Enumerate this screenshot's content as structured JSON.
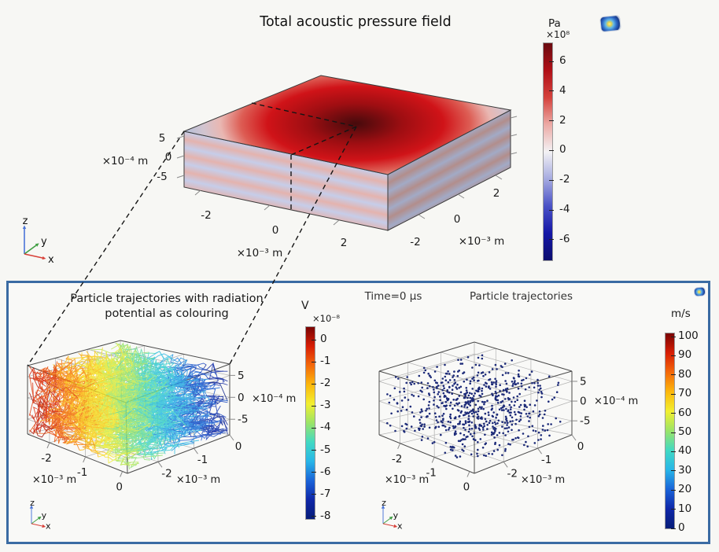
{
  "triad": {
    "z": "z",
    "y": "y",
    "x": "x"
  },
  "colors": {
    "panel_border": "#3a6ba3",
    "background": "#f7f7f4",
    "scatter_dot": "#1c2a78",
    "wireframe": "#4a4a4a",
    "grid_line": "#b4b4b4",
    "callout_dash": "#151515"
  },
  "colormaps": {
    "diverging": [
      "#6a0b10",
      "#b01017",
      "#d4423c",
      "#ecaaa5",
      "#f3f2f4",
      "#a6abe0",
      "#4a52c6",
      "#1517a6",
      "#0b0d6e"
    ],
    "rainbow": [
      "#7a0403",
      "#d81e05",
      "#f4690a",
      "#fcb80c",
      "#f2ef30",
      "#9ae468",
      "#41d9c3",
      "#28b6e8",
      "#1a63d8",
      "#0f27a8",
      "#071d78"
    ]
  },
  "chart_data": [
    {
      "id": "total-acoustic-pressure",
      "type": "surface3d",
      "title": "Total acoustic pressure field",
      "colorbar": {
        "label": "Pa",
        "multiplier": "×10⁸",
        "ticks": [
          6,
          4,
          2,
          0,
          -2,
          -4,
          -6
        ],
        "colormap": "diverging",
        "range": [
          -7.5,
          7.5
        ]
      },
      "x_axis": {
        "ticks": [
          -2,
          0,
          2
        ],
        "label": "×10⁻³ m"
      },
      "y_axis": {
        "ticks": [
          -2,
          0,
          2
        ],
        "label": "×10⁻³ m"
      },
      "z_axis": {
        "ticks": [
          5,
          0,
          -5
        ],
        "label": "×10⁻⁴ m"
      },
      "description": "3D slab: top face has radial pressure maximum (dark red centre) fading to pale blue corners; side walls show alternating pale red / pale blue standing-wave layers; dashed outline marks the quarter region magnified below"
    },
    {
      "id": "particle-trajectories-potential",
      "type": "trajectories3d",
      "title_line1": "Particle trajectories with radiation",
      "title_line2": "potential as colouring",
      "colorbar": {
        "label": "V",
        "multiplier": "×10⁻⁸",
        "ticks": [
          0,
          -1,
          -2,
          -3,
          -4,
          -5,
          -6,
          -7,
          -8
        ],
        "colormap": "rainbow"
      },
      "x_axis": {
        "ticks": [
          -2,
          -1,
          0
        ],
        "label": "×10⁻³ m"
      },
      "y_axis": {
        "ticks": [
          -2,
          -1,
          0
        ],
        "label": "×10⁻³ m"
      },
      "z_axis": {
        "ticks": [
          5,
          0,
          -5
        ],
        "label": "×10⁻⁴ m"
      },
      "render": {
        "lines": 260,
        "steps": 24,
        "seed": 7,
        "color_rule": "red at -x side through yellow to blue at +x side"
      }
    },
    {
      "id": "particle-trajectories-start",
      "type": "scatter3d",
      "annotation": "Time=0 µs",
      "title": "Particle trajectories",
      "colorbar": {
        "label": "m/s",
        "ticks": [
          100,
          90,
          80,
          70,
          60,
          50,
          40,
          30,
          20,
          10,
          0
        ],
        "colormap": "rainbow"
      },
      "x_axis": {
        "ticks": [
          -2,
          -1,
          0
        ],
        "label": "×10⁻³ m"
      },
      "y_axis": {
        "ticks": [
          -2,
          -1,
          0
        ],
        "label": "×10⁻³ m"
      },
      "z_axis": {
        "ticks": [
          5,
          0,
          -5
        ],
        "label": "×10⁻⁴ m"
      },
      "render": {
        "points": 680,
        "seed": 12,
        "dot_color": "#1c2a78",
        "note": "uniform random particle cloud at t=0, all speeds ~0 (dark blue)"
      }
    }
  ]
}
